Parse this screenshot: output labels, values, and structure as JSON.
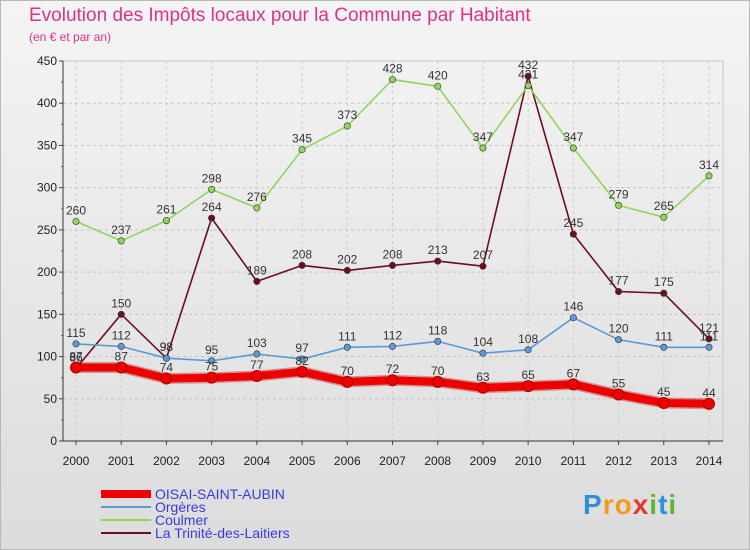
{
  "header": {
    "title": "Evolution des Impôts locaux pour la Commune par Habitant",
    "subtitle": "(en € et par an)"
  },
  "logo": {
    "text": "Proxiti"
  },
  "chart_data": {
    "type": "line",
    "title": "Evolution des Impôts locaux pour la Commune par Habitant",
    "subtitle": "(en € et par an)",
    "xlabel": "",
    "ylabel": "",
    "x": [
      "2000",
      "2001",
      "2002",
      "2003",
      "2004",
      "2005",
      "2006",
      "2007",
      "2008",
      "2009",
      "2010",
      "2011",
      "2012",
      "2013",
      "2014"
    ],
    "ylim": [
      0,
      450
    ],
    "yticks": [
      0,
      50,
      100,
      150,
      200,
      250,
      300,
      350,
      400,
      450
    ],
    "grid": true,
    "legend_position": "bottom-left",
    "series": [
      {
        "name": "La Trinité-des-Laitiers",
        "color": "#6b0f1f",
        "style": "thin",
        "values": [
          86,
          150,
          98,
          264,
          189,
          208,
          202,
          208,
          213,
          207,
          432,
          245,
          177,
          175,
          121
        ]
      },
      {
        "name": "Coulmer",
        "color": "#8fd65a",
        "style": "thin",
        "values": [
          260,
          237,
          261,
          298,
          276,
          345,
          373,
          428,
          420,
          347,
          421,
          347,
          279,
          265,
          314
        ]
      },
      {
        "name": "Orgères",
        "color": "#5b9bd5",
        "style": "thin",
        "values": [
          115,
          112,
          98,
          95,
          103,
          97,
          111,
          112,
          118,
          104,
          108,
          146,
          120,
          111,
          111
        ]
      },
      {
        "name": "OISAI-SAINT-AUBIN",
        "color": "#ee0000",
        "style": "thick",
        "values": [
          87,
          87,
          74,
          75,
          77,
          82,
          70,
          72,
          70,
          63,
          65,
          67,
          55,
          45,
          44
        ]
      }
    ],
    "legend_order": [
      "OISAI-SAINT-AUBIN",
      "Orgères",
      "Coulmer",
      "La Trinité-des-Laitiers"
    ]
  }
}
